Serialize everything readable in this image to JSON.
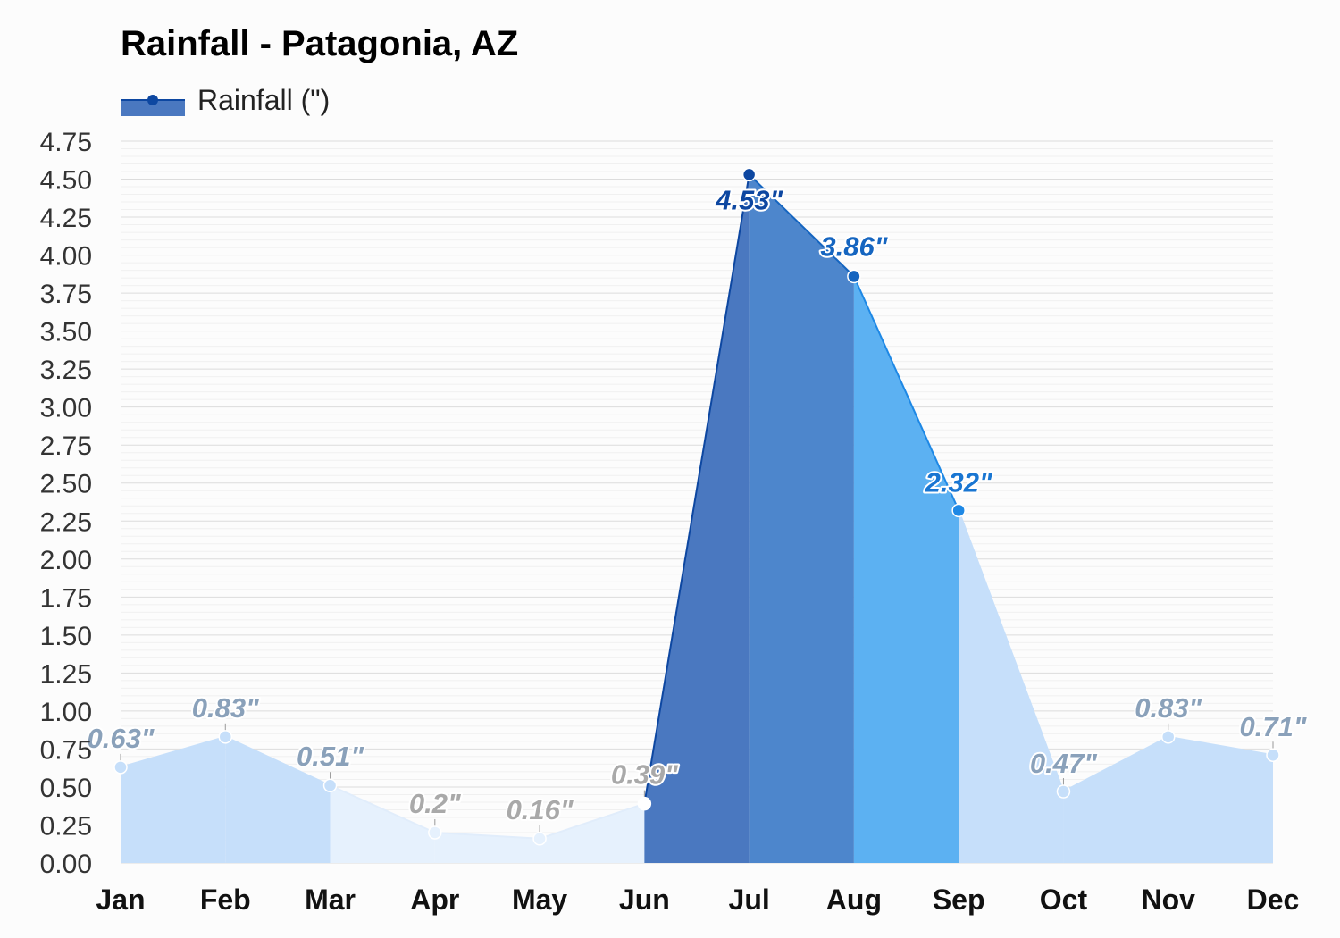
{
  "chart_data": {
    "type": "area",
    "title": "Rainfall - Patagonia, AZ",
    "legend": {
      "label": "Rainfall (\")",
      "position": "top-left"
    },
    "categories": [
      "Jan",
      "Feb",
      "Mar",
      "Apr",
      "May",
      "Jun",
      "Jul",
      "Aug",
      "Sep",
      "Oct",
      "Nov",
      "Dec"
    ],
    "series": [
      {
        "name": "Rainfall (\")",
        "values": [
          0.63,
          0.83,
          0.51,
          0.2,
          0.16,
          0.39,
          4.53,
          3.86,
          2.32,
          0.47,
          0.83,
          0.71
        ],
        "labels": [
          "0.63\"",
          "0.83\"",
          "0.51\"",
          "0.2\"",
          "0.16\"",
          "0.39\"",
          "4.53\"",
          "3.86\"",
          "2.32\"",
          "0.47\"",
          "0.83\"",
          "0.71\""
        ]
      }
    ],
    "yticks": [
      "0.00",
      "0.25",
      "0.50",
      "0.75",
      "1.00",
      "1.25",
      "1.50",
      "1.75",
      "2.00",
      "2.25",
      "2.50",
      "2.75",
      "3.00",
      "3.25",
      "3.50",
      "3.75",
      "4.00",
      "4.25",
      "4.50",
      "4.75"
    ],
    "ylim": [
      0,
      4.75
    ],
    "grid": true,
    "colors": {
      "legend_marker": "#0d47a1",
      "legend_fill": "#4a78c0",
      "segment_fills": [
        "#c6dffa",
        "#c6dffa",
        "#e6f1fd",
        "#e6f1fd",
        "#e6f1fd",
        "#4a78c0",
        "#4d86cc",
        "#5cb1f2",
        "#c6dffa",
        "#c6dffa",
        "#c6dffa"
      ],
      "segment_lines": [
        "#c6dffa",
        "#c6dffa",
        "#e1edfb",
        "#e1edfb",
        "#e1edfb",
        "#0d47a1",
        "#1565c0",
        "#1e88e5",
        "#c6dffa",
        "#c6dffa",
        "#c6dffa"
      ],
      "point_colors": [
        "#c6dffa",
        "#c6dffa",
        "#c6dffa",
        "#e6f1fd",
        "#e6f1fd",
        "#ffffff",
        "#0d47a1",
        "#1565c0",
        "#1e88e5",
        "#c6dffa",
        "#c6dffa",
        "#c6dffa"
      ],
      "label_colors": [
        "#8aa1ba",
        "#8aa1ba",
        "#8aa1ba",
        "#a9a9a9",
        "#a9a9a9",
        "#a9a9a9",
        "#0d47a1",
        "#1565c0",
        "#1976d2",
        "#8aa1ba",
        "#8aa1ba",
        "#8aa1ba"
      ]
    }
  }
}
